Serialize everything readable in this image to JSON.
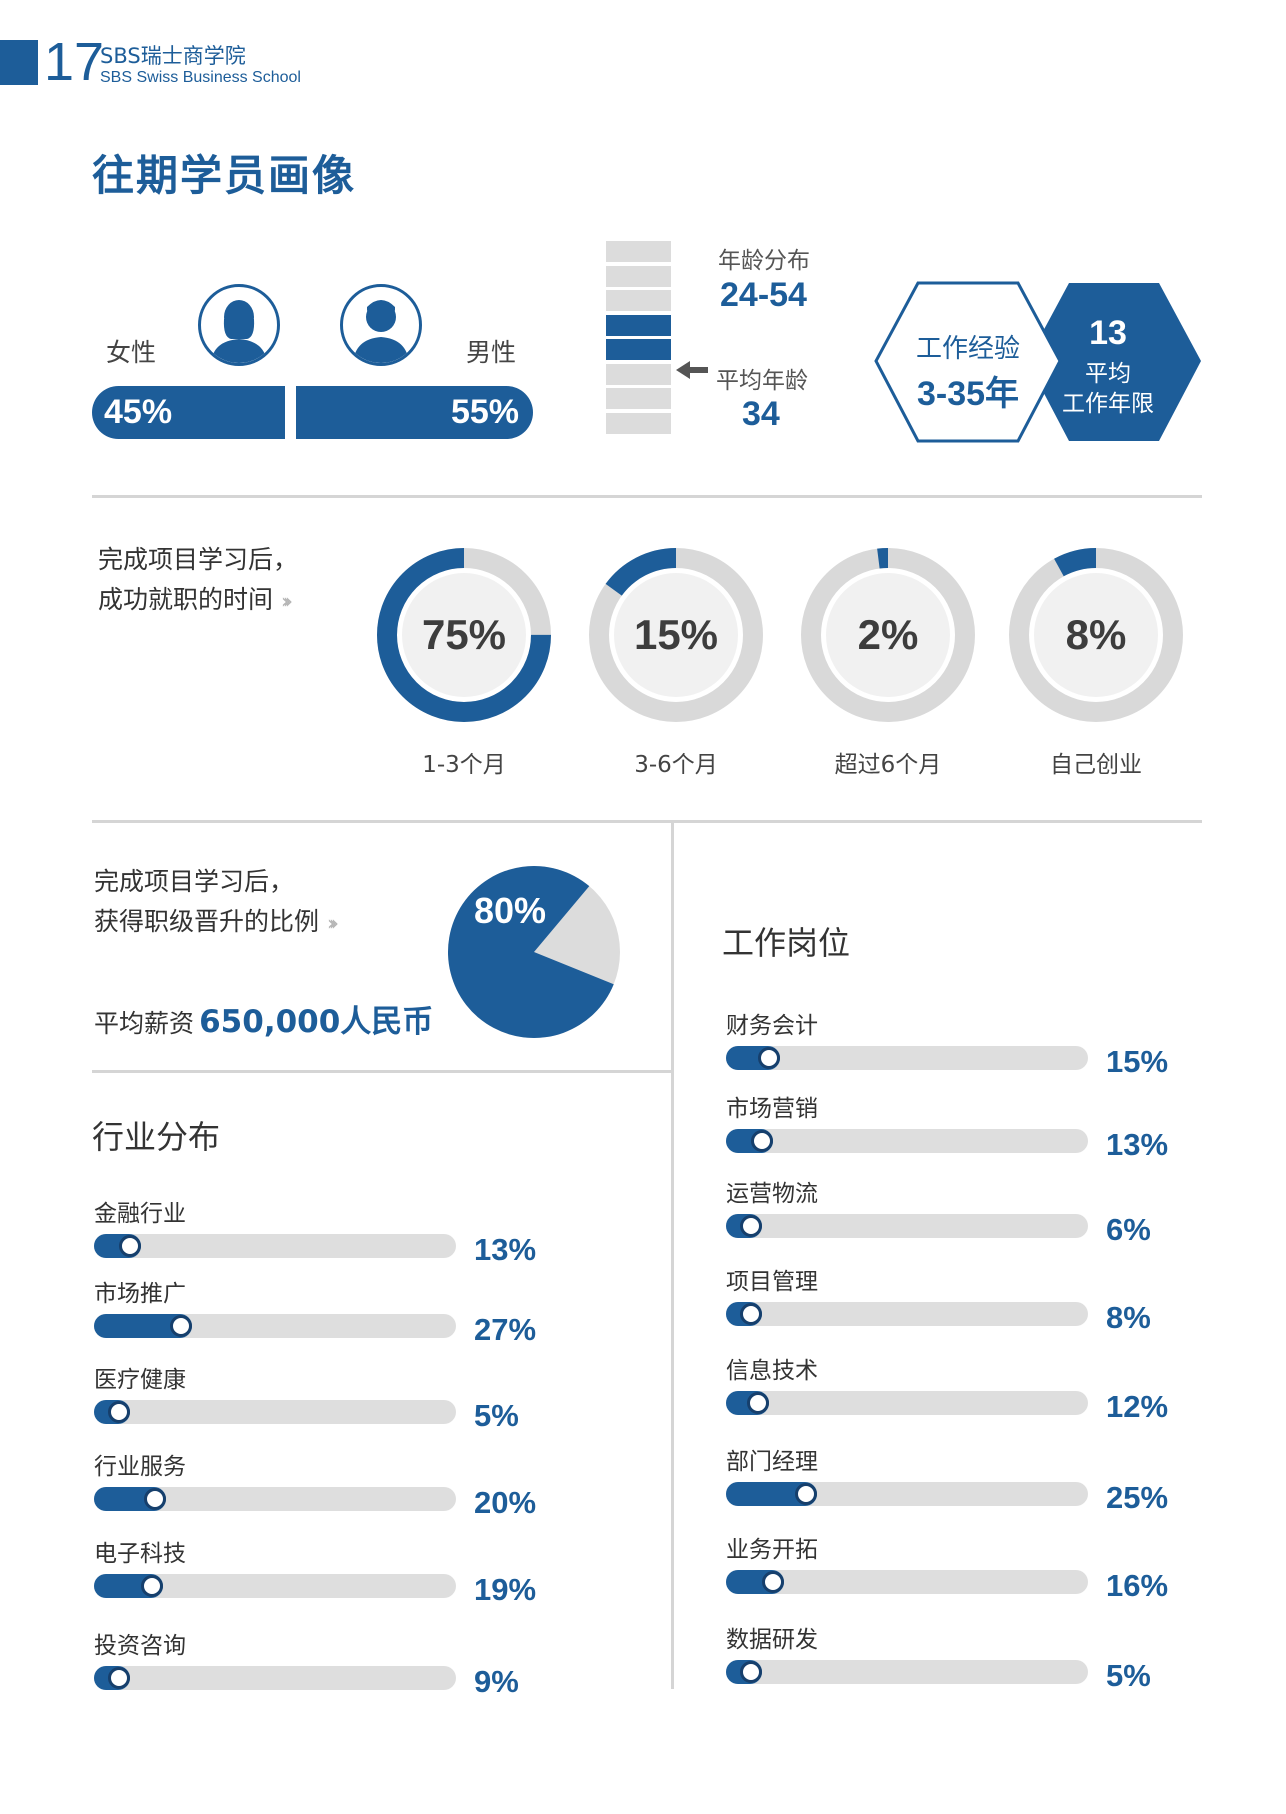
{
  "header": {
    "page_number": "17",
    "school_cn": "SBS瑞士商学院",
    "school_en": "SBS Swiss Business School"
  },
  "title": "往期学员画像",
  "gender": {
    "female_label": "女性",
    "male_label": "男性",
    "female_pct": "45%",
    "male_pct": "55%",
    "female_share": 0.45,
    "male_share": 0.55
  },
  "age": {
    "range_label": "年龄分布",
    "range_value": "24-54",
    "avg_label": "平均年龄",
    "avg_value": "34",
    "cell_count": 8,
    "highlighted_cells": [
      4,
      5
    ]
  },
  "experience": {
    "label": "工作经验",
    "range": "3-35年",
    "avg_number": "13",
    "avg_label_1": "平均",
    "avg_label_2": "工作年限"
  },
  "employment": {
    "intro_1": "完成项目学习后，",
    "intro_2": "成功就职的时间",
    "items": [
      {
        "pct_text": "75%",
        "value": 75,
        "label": "1-3个月"
      },
      {
        "pct_text": "15%",
        "value": 15,
        "label": "3-6个月"
      },
      {
        "pct_text": "2%",
        "value": 2,
        "label": "超过6个月"
      },
      {
        "pct_text": "8%",
        "value": 8,
        "label": "自己创业"
      }
    ]
  },
  "promotion": {
    "intro_1": "完成项目学习后，",
    "intro_2": "获得职级晋升的比例",
    "pct_text": "80%",
    "value": 80,
    "salary_label": "平均薪资",
    "salary_value": "650,000人民币"
  },
  "industry": {
    "title": "行业分布",
    "items": [
      {
        "label": "金融行业",
        "pct_text": "13%",
        "value": 13
      },
      {
        "label": "市场推广",
        "pct_text": "27%",
        "value": 27
      },
      {
        "label": "医疗健康",
        "pct_text": "5%",
        "value": 5
      },
      {
        "label": "行业服务",
        "pct_text": "20%",
        "value": 20
      },
      {
        "label": "电子科技",
        "pct_text": "19%",
        "value": 19
      },
      {
        "label": "投资咨询",
        "pct_text": "9%",
        "value": 9
      }
    ]
  },
  "positions": {
    "title": "工作岗位",
    "items": [
      {
        "label": "财务会计",
        "pct_text": "15%",
        "value": 15
      },
      {
        "label": "市场营销",
        "pct_text": "13%",
        "value": 13
      },
      {
        "label": "运营物流",
        "pct_text": "6%",
        "value": 6
      },
      {
        "label": "项目管理",
        "pct_text": "8%",
        "value": 8
      },
      {
        "label": "信息技术",
        "pct_text": "12%",
        "value": 12
      },
      {
        "label": "部门经理",
        "pct_text": "25%",
        "value": 25
      },
      {
        "label": "业务开拓",
        "pct_text": "16%",
        "value": 16
      },
      {
        "label": "数据研发",
        "pct_text": "5%",
        "value": 5
      }
    ]
  },
  "colors": {
    "brand_blue": "#1d5d99",
    "dark_blue": "#163f6c",
    "track_gray": "#dedede",
    "ring_gray": "#d9d9d9"
  }
}
